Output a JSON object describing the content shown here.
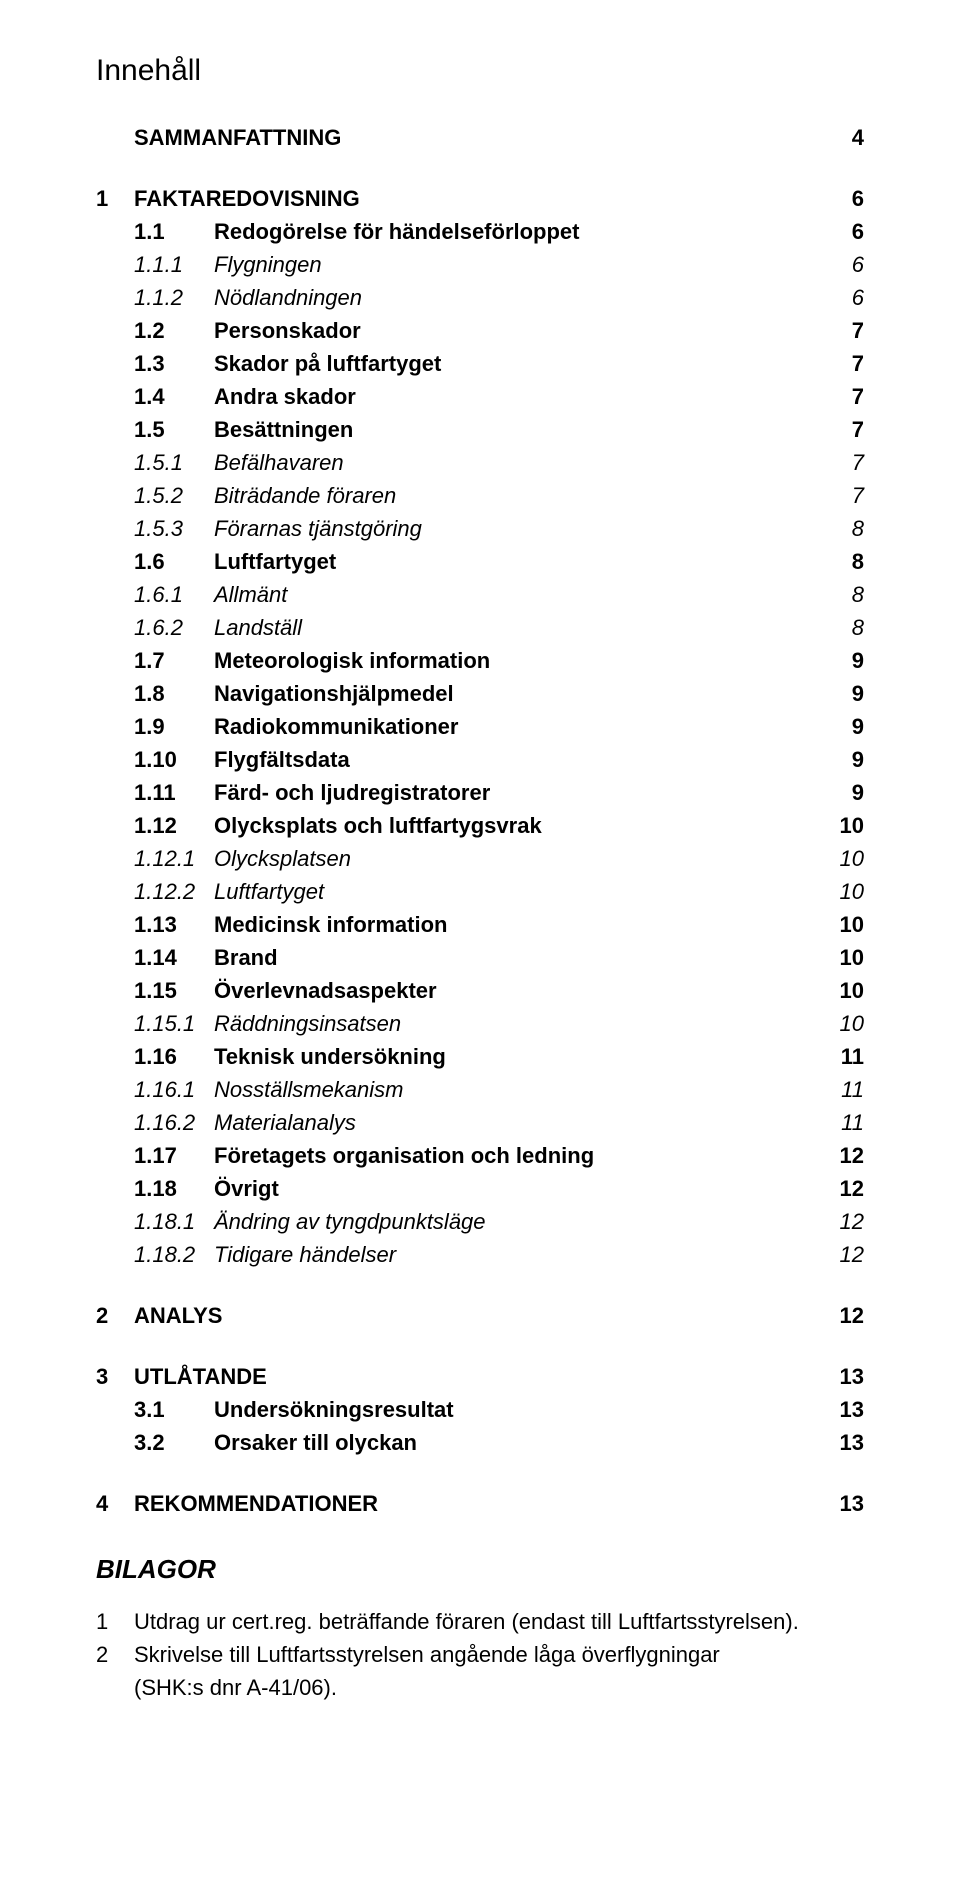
{
  "doc_title": "Innehåll",
  "toc": [
    {
      "lvl": 0,
      "num": "",
      "label": "SAMMANFATTNING",
      "page": "4"
    },
    {
      "lvl": 0,
      "num": "1",
      "label": "FAKTAREDOVISNING",
      "page": "6"
    },
    {
      "lvl": 1,
      "num": "1.1",
      "label": "Redogörelse för händelseförloppet",
      "page": "6"
    },
    {
      "lvl": 2,
      "num": "1.1.1",
      "label": "Flygningen",
      "page": "6"
    },
    {
      "lvl": 2,
      "num": "1.1.2",
      "label": "Nödlandningen",
      "page": "6"
    },
    {
      "lvl": 1,
      "num": "1.2",
      "label": "Personskador",
      "page": "7"
    },
    {
      "lvl": 1,
      "num": "1.3",
      "label": "Skador på luftfartyget",
      "page": "7"
    },
    {
      "lvl": 1,
      "num": "1.4",
      "label": "Andra skador",
      "page": "7"
    },
    {
      "lvl": 1,
      "num": "1.5",
      "label": "Besättningen",
      "page": "7"
    },
    {
      "lvl": 2,
      "num": "1.5.1",
      "label": "Befälhavaren",
      "page": "7"
    },
    {
      "lvl": 2,
      "num": "1.5.2",
      "label": "Biträdande föraren",
      "page": "7"
    },
    {
      "lvl": 2,
      "num": "1.5.3",
      "label": "Förarnas tjänstgöring",
      "page": "8"
    },
    {
      "lvl": 1,
      "num": "1.6",
      "label": "Luftfartyget",
      "page": "8"
    },
    {
      "lvl": 2,
      "num": "1.6.1",
      "label": "Allmänt",
      "page": "8"
    },
    {
      "lvl": 2,
      "num": "1.6.2",
      "label": "Landställ",
      "page": "8"
    },
    {
      "lvl": 1,
      "num": "1.7",
      "label": "Meteorologisk information",
      "page": "9"
    },
    {
      "lvl": 1,
      "num": "1.8",
      "label": "Navigationshjälpmedel",
      "page": "9"
    },
    {
      "lvl": 1,
      "num": "1.9",
      "label": "Radiokommunikationer",
      "page": "9"
    },
    {
      "lvl": 1,
      "num": "1.10",
      "label": "Flygfältsdata",
      "page": "9"
    },
    {
      "lvl": 1,
      "num": "1.11",
      "label": "Färd- och ljudregistratorer",
      "page": "9"
    },
    {
      "lvl": 1,
      "num": "1.12",
      "label": "Olycksplats och luftfartygsvrak",
      "page": "10"
    },
    {
      "lvl": 2,
      "num": "1.12.1",
      "label": "Olycksplatsen",
      "page": "10"
    },
    {
      "lvl": 2,
      "num": "1.12.2",
      "label": "Luftfartyget",
      "page": "10"
    },
    {
      "lvl": 1,
      "num": "1.13",
      "label": "Medicinsk information",
      "page": "10"
    },
    {
      "lvl": 1,
      "num": "1.14",
      "label": "Brand",
      "page": "10"
    },
    {
      "lvl": 1,
      "num": "1.15",
      "label": "Överlevnadsaspekter",
      "page": "10"
    },
    {
      "lvl": 2,
      "num": "1.15.1",
      "label": "Räddningsinsatsen",
      "page": "10"
    },
    {
      "lvl": 1,
      "num": "1.16",
      "label": "Teknisk undersökning",
      "page": "11"
    },
    {
      "lvl": 2,
      "num": "1.16.1",
      "label": "Nosställsmekanism",
      "page": "11"
    },
    {
      "lvl": 2,
      "num": "1.16.2",
      "label": "Materialanalys",
      "page": "11"
    },
    {
      "lvl": 1,
      "num": "1.17",
      "label": "Företagets organisation och ledning",
      "page": "12"
    },
    {
      "lvl": 1,
      "num": "1.18",
      "label": "Övrigt",
      "page": "12"
    },
    {
      "lvl": 2,
      "num": "1.18.1",
      "label": "Ändring av tyngdpunktsläge",
      "page": "12"
    },
    {
      "lvl": 2,
      "num": "1.18.2",
      "label": "Tidigare händelser",
      "page": "12"
    },
    {
      "lvl": 0,
      "num": "2",
      "label": "ANALYS",
      "page": "12"
    },
    {
      "lvl": 0,
      "num": "3",
      "label": "UTLÅTANDE",
      "page": "13"
    },
    {
      "lvl": 1,
      "num": "3.1",
      "label": "Undersökningsresultat",
      "page": "13"
    },
    {
      "lvl": 1,
      "num": "3.2",
      "label": "Orsaker till olyckan",
      "page": "13"
    },
    {
      "lvl": 0,
      "num": "4",
      "label": "REKOMMENDATIONER",
      "page": "13"
    }
  ],
  "appendix_title": "BILAGOR",
  "appendix": [
    {
      "num": "1",
      "lines": [
        "Utdrag ur cert.reg. beträffande föraren (endast till Luftfartsstyrelsen)."
      ]
    },
    {
      "num": "2",
      "lines": [
        "Skrivelse till Luftfartsstyrelsen angående låga överflygningar",
        "(SHK:s dnr A-41/06)."
      ]
    }
  ]
}
